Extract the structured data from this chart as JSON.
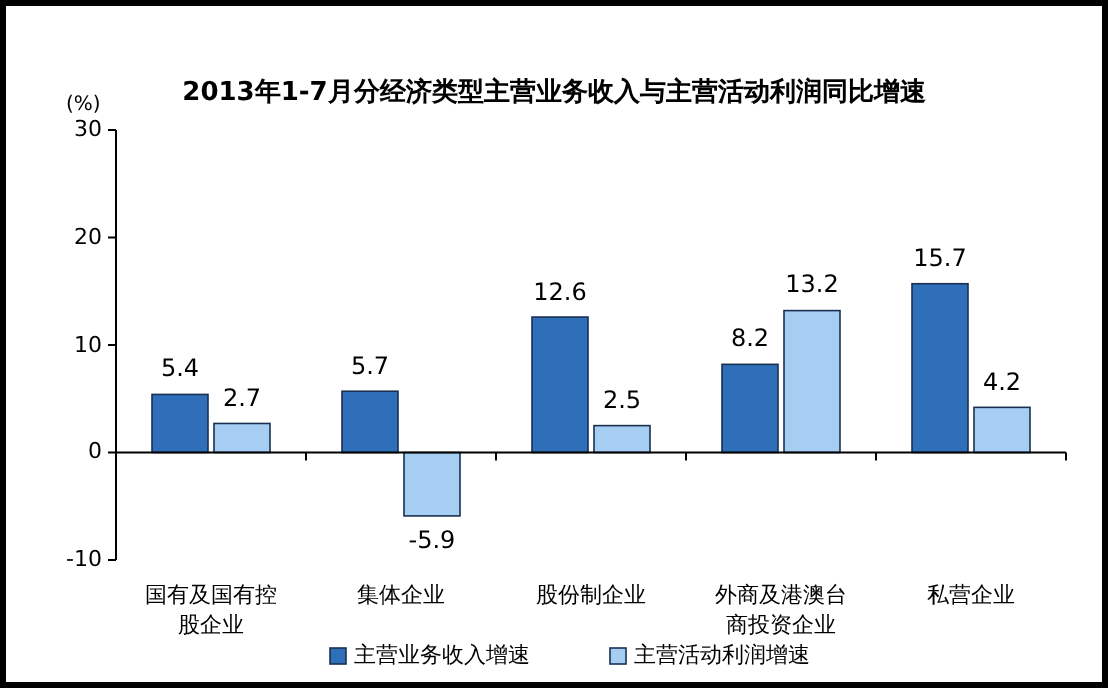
{
  "chart_data": {
    "type": "bar",
    "title": "2013年1-7月分经济类型主营业务收入与主营活动利润同比增速",
    "ylabel": "(%)",
    "categories": [
      "国有及国有控股企业",
      "集体企业",
      "股份制企业",
      "外商及港澳台商投资企业",
      "私营企业"
    ],
    "series": [
      {
        "name": "主营业务收入增速",
        "color": "#2f6fba",
        "values": [
          5.4,
          5.7,
          12.6,
          8.2,
          15.7
        ]
      },
      {
        "name": "主营活动利润增速",
        "color": "#a6cef3",
        "values": [
          2.7,
          -5.9,
          2.5,
          13.2,
          4.2
        ]
      }
    ],
    "ylim": [
      -10,
      30
    ],
    "yticks": [
      -10,
      0,
      10,
      20,
      30
    ],
    "data_labels": true,
    "legend": "bottom"
  }
}
